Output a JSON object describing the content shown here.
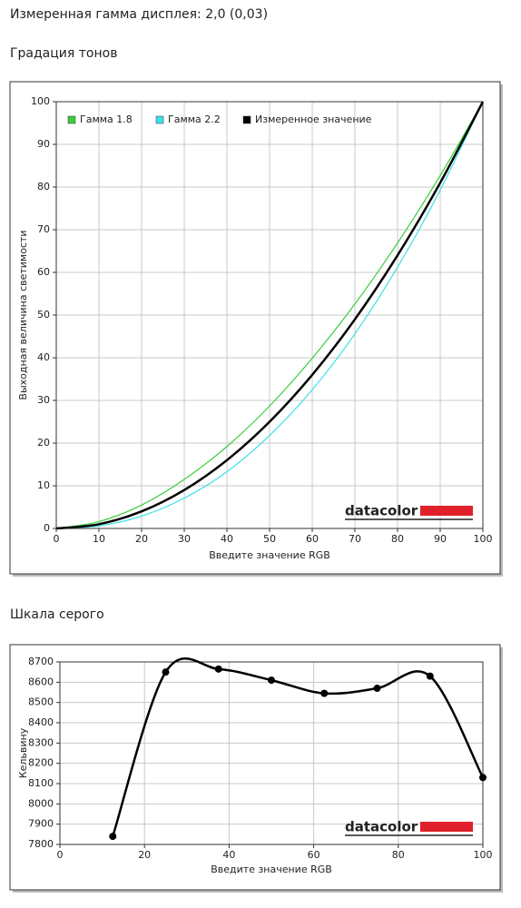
{
  "header": "Измеренная гамма дисплея: 2,0 (0,03)",
  "chart_data": [
    {
      "type": "line",
      "title": "Градация тонов",
      "x_label": "Введите значение RGB",
      "y_label": "Выходная величина светимости",
      "x": [
        0,
        10,
        20,
        30,
        40,
        50,
        60,
        70,
        80,
        90,
        100
      ],
      "series": [
        {
          "name": "Гамма 1.8",
          "color": "#3ccc3c",
          "values": [
            0,
            1.6,
            5.5,
            11.5,
            19.2,
            28.7,
            39.9,
            52.6,
            66.9,
            82.7,
            100
          ]
        },
        {
          "name": "Гамма 2.2",
          "color": "#3ce0ea",
          "values": [
            0,
            0.6,
            2.9,
            7.1,
            13.3,
            21.8,
            32.5,
            45.6,
            61.2,
            79.3,
            100
          ]
        },
        {
          "name": "Измеренное значение",
          "color": "#000000",
          "values": [
            0,
            1,
            4,
            9,
            16,
            25,
            36,
            49,
            64,
            81,
            100
          ]
        }
      ],
      "xlim": [
        0,
        100
      ],
      "xticks": [
        0,
        10,
        20,
        30,
        40,
        50,
        60,
        70,
        80,
        90,
        100
      ],
      "ylim": [
        0,
        100
      ],
      "yticks": [
        0,
        10,
        20,
        30,
        40,
        50,
        60,
        70,
        80,
        90,
        100
      ],
      "grid": true,
      "legend": "top-left",
      "smooth": true,
      "markers": false,
      "watermark": "datacolor"
    },
    {
      "type": "line",
      "title": "Шкала серого",
      "x_label": "Введите значение RGB",
      "y_label": "Кельвину",
      "x": [
        12.5,
        25,
        37.5,
        50,
        62.5,
        75,
        87.5,
        100
      ],
      "series": [
        {
          "name": "Кельвину",
          "color": "#000000",
          "values": [
            7840,
            8650,
            8665,
            8610,
            8545,
            8570,
            8630,
            8130
          ]
        }
      ],
      "xlim": [
        0,
        100
      ],
      "xticks": [
        0,
        20,
        40,
        60,
        80,
        100
      ],
      "ylim": [
        7800,
        8700
      ],
      "yticks": [
        7800,
        7900,
        8000,
        8100,
        8200,
        8300,
        8400,
        8500,
        8600,
        8700
      ],
      "grid": true,
      "smooth": true,
      "markers": true,
      "watermark": "datacolor"
    }
  ]
}
